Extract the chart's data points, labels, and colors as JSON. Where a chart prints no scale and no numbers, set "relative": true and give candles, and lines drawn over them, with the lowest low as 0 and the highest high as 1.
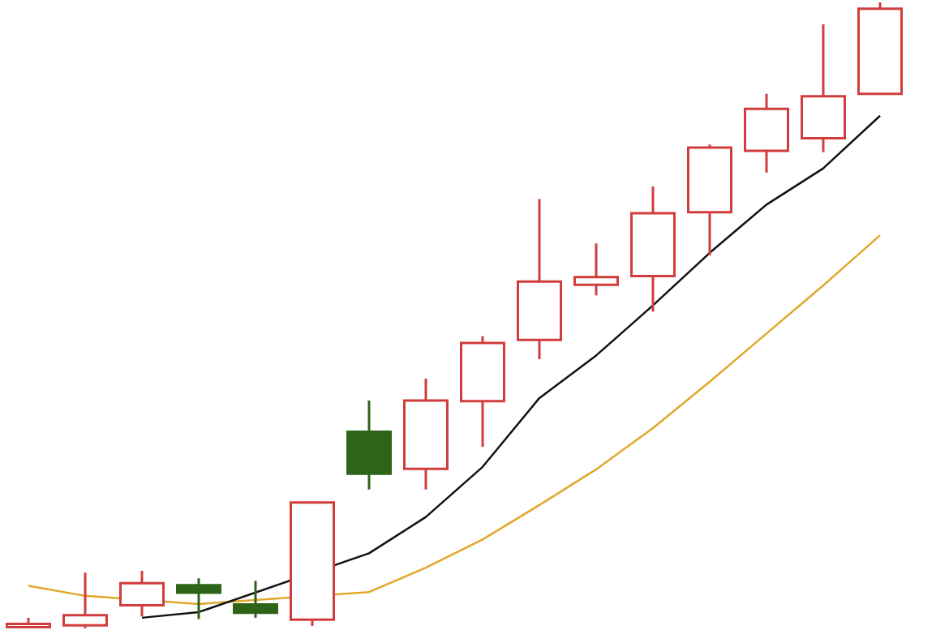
{
  "chart_data": {
    "type": "candlestick",
    "relative": true,
    "marker": "none",
    "categories": [
      null,
      null,
      null,
      null,
      null,
      null,
      null,
      null,
      null,
      null,
      null,
      null,
      null,
      null,
      null,
      null
    ],
    "ohlc": [
      [
        0,
        0.017,
        0,
        0.009
      ],
      [
        0.003,
        0.089,
        0,
        0.023
      ],
      [
        0.035,
        0.092,
        0.019,
        0.074
      ],
      [
        0.071,
        0.08,
        0.015,
        0.055
      ],
      [
        0.04,
        0.076,
        0.017,
        0.023
      ],
      [
        0.012,
        0.203,
        0.004,
        0.203
      ],
      [
        0.316,
        0.364,
        0.222,
        0.245
      ],
      [
        0.253,
        0.399,
        0.222,
        0.366
      ],
      [
        0.361,
        0.467,
        0.29,
        0.458
      ],
      [
        0.459,
        0.686,
        0.43,
        0.556
      ],
      [
        0.547,
        0.615,
        0.532,
        0.563
      ],
      [
        0.561,
        0.706,
        0.506,
        0.665
      ],
      [
        0.663,
        0.773,
        0.596,
        0.77
      ],
      [
        0.761,
        0.854,
        0.728,
        0.832
      ],
      [
        0.781,
        0.965,
        0.761,
        0.852
      ],
      [
        0.852,
        1,
        0.852,
        0.992
      ]
    ],
    "colors": [
      "#d23c3c",
      "#d23c3c",
      "#d23c3c",
      "#2e6417",
      "#2e6417",
      "#d23c3c",
      "#2e6417",
      "#d23c3c",
      "#d23c3c",
      "#d23c3c",
      "#d23c3c",
      "#d23c3c",
      "#d23c3c",
      "#d23c3c",
      "#d23c3c",
      "#d23c3c"
    ],
    "series": [
      {
        "type": "line",
        "color": "#111111",
        "values": [
          null,
          null,
          0.017,
          0.026,
          null,
          null,
          0.12,
          0.178,
          0.258,
          0.368,
          0.436,
          0.516,
          0.6,
          0.677,
          0.735,
          0.819
        ]
      },
      {
        "type": "line",
        "color": "#e0a82a",
        "values": [
          0.068,
          0.052,
          null,
          0.039,
          null,
          null,
          0.058,
          0.097,
          0.142,
          0.197,
          0.254,
          0.32,
          0.394,
          0.471,
          0.548,
          0.628
        ]
      }
    ]
  }
}
